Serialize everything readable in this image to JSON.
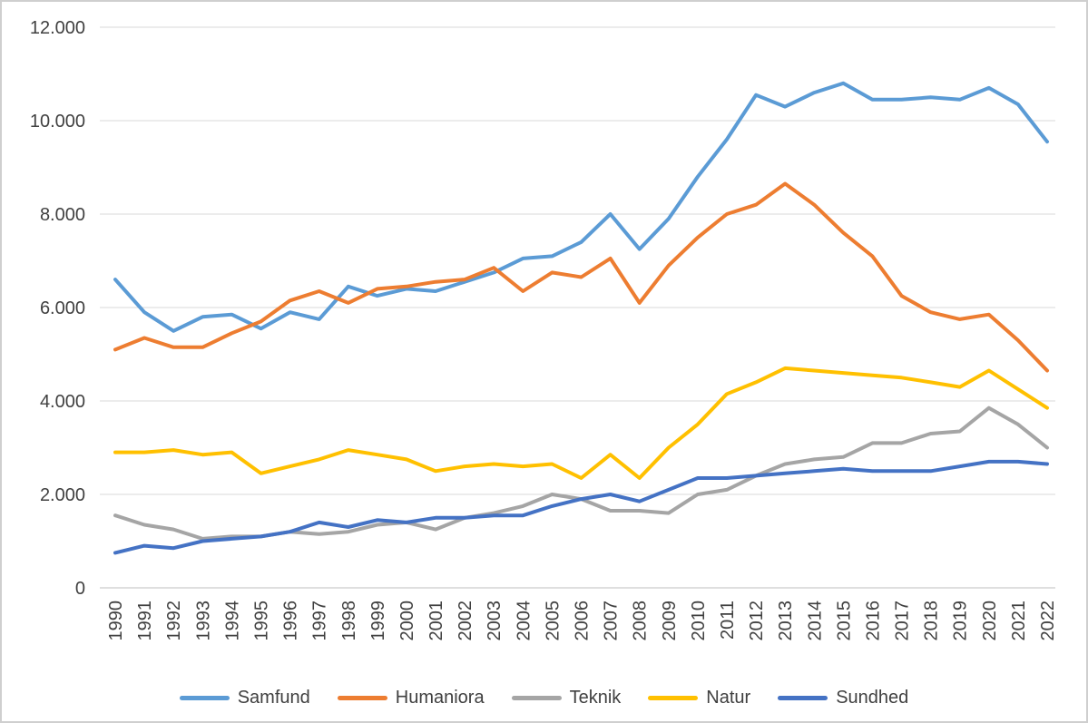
{
  "chart_data": {
    "type": "line",
    "title": "",
    "xlabel": "",
    "ylabel": "",
    "ylim": [
      0,
      12000
    ],
    "y_ticks": [
      0,
      2000,
      4000,
      6000,
      8000,
      10000,
      12000
    ],
    "y_tick_labels": [
      "0",
      "2.000",
      "4.000",
      "6.000",
      "8.000",
      "10.000",
      "12.000"
    ],
    "grid": true,
    "legend_position": "bottom",
    "x_label_rotation": "vertical",
    "x": [
      "1990",
      "1991",
      "1992",
      "1993",
      "1994",
      "1995",
      "1996",
      "1997",
      "1998",
      "1999",
      "2000",
      "2001",
      "2002",
      "2003",
      "2004",
      "2005",
      "2006",
      "2007",
      "2008",
      "2009",
      "2010",
      "2011",
      "2012",
      "2013",
      "2014",
      "2015",
      "2016",
      "2017",
      "2018",
      "2019",
      "2020",
      "2021",
      "2022"
    ],
    "series": [
      {
        "name": "Samfund",
        "color": "#5B9BD5",
        "values": [
          6600,
          5900,
          5500,
          5800,
          5850,
          5550,
          5900,
          5750,
          6450,
          6250,
          6400,
          6350,
          6550,
          6750,
          7050,
          7100,
          7400,
          8000,
          7250,
          7900,
          8800,
          9600,
          10550,
          10300,
          10600,
          10800,
          10450,
          10450,
          10500,
          10450,
          10700,
          10350,
          9550
        ]
      },
      {
        "name": "Humaniora",
        "color": "#ED7D31",
        "values": [
          5100,
          5350,
          5150,
          5150,
          5450,
          5700,
          6150,
          6350,
          6100,
          6400,
          6450,
          6550,
          6600,
          6850,
          6350,
          6750,
          6650,
          7050,
          6100,
          6900,
          7500,
          8000,
          8200,
          8650,
          8200,
          7600,
          7100,
          6250,
          5900,
          5750,
          5850,
          5300,
          4650
        ]
      },
      {
        "name": "Teknik",
        "color": "#A5A5A5",
        "values": [
          1550,
          1350,
          1250,
          1050,
          1100,
          1100,
          1200,
          1150,
          1200,
          1350,
          1400,
          1250,
          1500,
          1600,
          1750,
          2000,
          1900,
          1650,
          1650,
          1600,
          2000,
          2100,
          2400,
          2650,
          2750,
          2800,
          3100,
          3100,
          3300,
          3350,
          3850,
          3500,
          3000
        ]
      },
      {
        "name": "Natur",
        "color": "#FFC000",
        "values": [
          2900,
          2900,
          2950,
          2850,
          2900,
          2450,
          2600,
          2750,
          2950,
          2850,
          2750,
          2500,
          2600,
          2650,
          2600,
          2650,
          2350,
          2850,
          2350,
          3000,
          3500,
          4150,
          4400,
          4700,
          4650,
          4600,
          4550,
          4500,
          4400,
          4300,
          4650,
          4250,
          3850
        ]
      },
      {
        "name": "Sundhed",
        "color": "#4472C4",
        "values": [
          750,
          900,
          850,
          1000,
          1050,
          1100,
          1200,
          1400,
          1300,
          1450,
          1400,
          1500,
          1500,
          1550,
          1550,
          1750,
          1900,
          2000,
          1850,
          2100,
          2350,
          2350,
          2400,
          2450,
          2500,
          2550,
          2500,
          2500,
          2500,
          2600,
          2700,
          2700,
          2650
        ]
      }
    ],
    "legend_labels": [
      "Samfund",
      "Humaniora",
      "Teknik",
      "Natur",
      "Sundhed"
    ]
  },
  "style_colors": {
    "gridline": "#D9D9D9",
    "axis_line": "#BFBFBF",
    "tick_text": "#404040",
    "frame_border": "#CFCFCF",
    "background": "#FFFFFF"
  }
}
